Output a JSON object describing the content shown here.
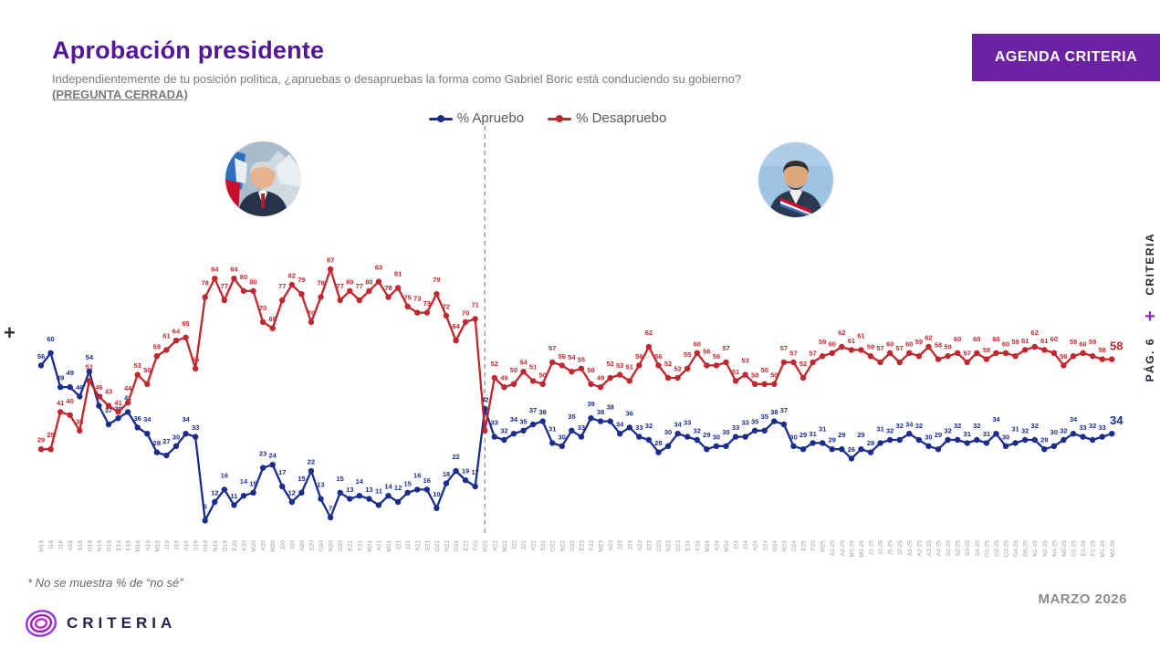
{
  "header": {
    "title": "Aprobación presidente",
    "subtitle": "Independientemente de tu posición política, ¿apruebas o desapruebas la forma como Gabriel Boric está conduciendo su gobierno?",
    "pregunta_cerrada": "(PREGUNTA CERRADA)",
    "button_label": "AGENDA CRITERIA"
  },
  "legend": [
    {
      "label": "% Apruebo",
      "color": "#1b2d8c"
    },
    {
      "label": "% Desapruebo",
      "color": "#c1272d"
    }
  ],
  "decor": {
    "left_plus": "+"
  },
  "right_rail": {
    "brand": "CRITERIA",
    "plus": "+",
    "page": "PÁG. 6"
  },
  "footnote": "* No se muestra % de “no sé”",
  "footer": {
    "logo_text": "CRITERIA",
    "date": "MARZO 2026"
  },
  "avatars": {
    "left": "Sebastián Piñera",
    "right": "Gabriel Boric"
  },
  "chart_data": {
    "type": "line",
    "title": "Aprobación presidente",
    "xlabel": "",
    "ylabel": "%",
    "ylim": [
      0,
      100
    ],
    "grid": false,
    "legend_position": "top-center",
    "divider_index": 46,
    "divider_style": "dashed",
    "x": [
      "M18",
      "J18",
      "J18",
      "A18",
      "S18",
      "O18",
      "N18",
      "D18",
      "E19",
      "F19",
      "M19",
      "A19",
      "M19",
      "J19",
      "J19",
      "A19",
      "S19",
      "O19",
      "N19",
      "D19",
      "E20",
      "F20",
      "M20",
      "A20",
      "M20",
      "J20",
      "J20",
      "A20",
      "S20",
      "O20",
      "N20",
      "D20",
      "E21",
      "F21",
      "M21",
      "A21",
      "M21",
      "J21",
      "J21",
      "A21",
      "S21",
      "O21",
      "N21",
      "D21",
      "E22",
      "F22",
      "M22",
      "A22",
      "M22",
      "J22",
      "J22",
      "A22",
      "S22",
      "O22",
      "N22",
      "D22",
      "E23",
      "F23",
      "M23",
      "A23",
      "J23",
      "J23",
      "A23",
      "S23",
      "O23",
      "N23",
      "D23",
      "E24",
      "F24",
      "M24",
      "A24",
      "M24",
      "J24",
      "J24",
      "A24",
      "S24",
      "O24",
      "N24",
      "D24",
      "E25",
      "F25",
      "M25",
      "A1-25",
      "A2-25",
      "M1-25",
      "M2-25",
      "J1-25",
      "J2-25",
      "J1-25",
      "J2-25",
      "A1-25",
      "A2-25",
      "A3-25",
      "A4-25",
      "S1-25",
      "S2-25",
      "S3-25",
      "S4-25",
      "O1-25",
      "O2-25",
      "O3-25",
      "O4-25",
      "O5-25",
      "N1-25",
      "N2-25",
      "N4-25",
      "N5-25",
      "D1-25",
      "E1-26",
      "F1-26",
      "M1-26",
      "M2-26"
    ],
    "series": [
      {
        "name": "% Apruebo",
        "color": "#1b2d8c",
        "hidden_label_indices": [],
        "values": [
          56,
          60,
          49,
          49,
          46,
          54,
          43,
          37,
          39,
          41,
          36,
          34,
          28,
          27,
          30,
          34,
          33,
          6,
          12,
          16,
          11,
          14,
          15,
          23,
          24,
          17,
          12,
          15,
          22,
          13,
          7,
          15,
          13,
          14,
          13,
          11,
          14,
          12,
          15,
          16,
          16,
          10,
          18,
          22,
          19,
          17,
          42,
          33,
          32,
          34,
          35,
          37,
          38,
          31,
          30,
          35,
          33,
          39,
          38,
          38,
          34,
          36,
          33,
          32,
          28,
          30,
          34,
          33,
          32,
          29,
          30,
          30,
          33,
          33,
          35,
          35,
          38,
          37,
          30,
          29,
          31,
          31,
          29,
          29,
          26,
          29,
          28,
          31,
          32,
          32,
          34,
          32,
          30,
          29,
          32,
          32,
          31,
          32,
          31,
          34,
          30,
          31,
          32,
          32,
          29,
          30,
          32,
          34,
          33,
          32,
          33,
          34
        ]
      },
      {
        "name": "% Desapruebo",
        "color": "#c1272d",
        "hidden_label_indices": [
          46
        ],
        "values": [
          29,
          29,
          41,
          40,
          35,
          51,
          46,
          43,
          41,
          44,
          53,
          50,
          59,
          61,
          64,
          65,
          55,
          78,
          84,
          77,
          84,
          80,
          80,
          70,
          68,
          77,
          82,
          79,
          70,
          78,
          87,
          77,
          80,
          77,
          80,
          83,
          78,
          81,
          75,
          73,
          73,
          79,
          72,
          64,
          70,
          71,
          35,
          52,
          49,
          50,
          54,
          51,
          50,
          57,
          56,
          54,
          55,
          50,
          49,
          52,
          53,
          51,
          56,
          62,
          56,
          52,
          52,
          55,
          60,
          56,
          56,
          57,
          51,
          53,
          50,
          50,
          50,
          57,
          57,
          52,
          57,
          59,
          60,
          62,
          61,
          61,
          59,
          57,
          60,
          57,
          60,
          59,
          62,
          58,
          59,
          60,
          57,
          60,
          58,
          60,
          60,
          59,
          61,
          62,
          61,
          60,
          56,
          59,
          60,
          59,
          58,
          58
        ]
      }
    ]
  }
}
